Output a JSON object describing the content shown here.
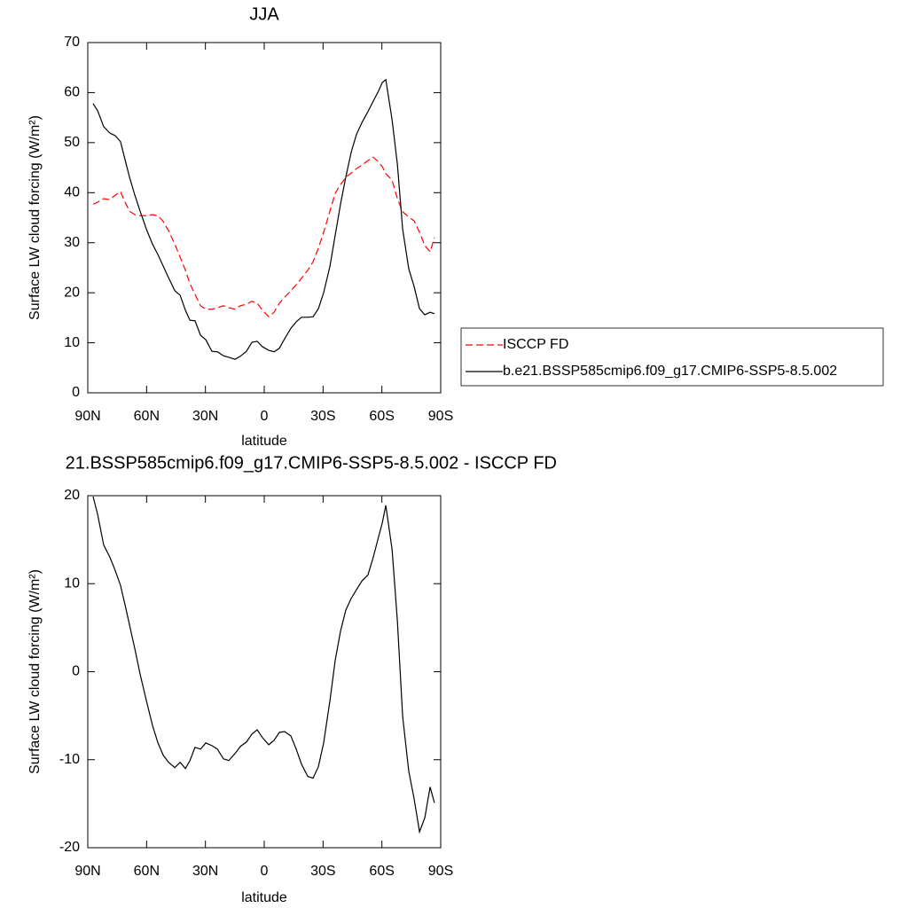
{
  "chart_data": [
    {
      "type": "line",
      "title": "JJA",
      "xlabel": "latitude",
      "ylabel": "Surface LW cloud forcing (W/m²)",
      "x": [
        87.3,
        85.0,
        81.9,
        78.7,
        76.0,
        73.3,
        71.0,
        68.7,
        66.0,
        63.3,
        60.1,
        57.0,
        54.2,
        51.5,
        48.8,
        45.6,
        42.9,
        40.2,
        37.9,
        35.3,
        32.5,
        29.8,
        26.7,
        23.9,
        20.8,
        18.1,
        14.9,
        12.2,
        9.1,
        6.3,
        3.6,
        0.9,
        -2.3,
        -5.0,
        -7.7,
        -10.4,
        -13.6,
        -16.3,
        -19.0,
        -22.2,
        -24.9,
        -27.6,
        -30.3,
        -33.5,
        -36.2,
        -38.9,
        -41.6,
        -44.3,
        -47.0,
        -49.8,
        -52.9,
        -55.6,
        -58.4,
        -60.2,
        -62.0,
        -65.2,
        -67.9,
        -70.6,
        -73.7,
        -76.4,
        -79.2,
        -81.9,
        -84.6,
        -86.8
      ],
      "series": [
        {
          "name": "ISCCP FD",
          "color": "#ff0000",
          "dashed": true,
          "values": [
            37.7,
            38.1,
            38.8,
            38.6,
            39.5,
            40.2,
            38.1,
            36.3,
            35.6,
            35.4,
            35.4,
            35.6,
            35.4,
            34.2,
            32.4,
            29.7,
            27.1,
            24.5,
            21.8,
            19.7,
            17.4,
            16.7,
            16.7,
            17.0,
            17.4,
            17.0,
            16.7,
            17.4,
            17.7,
            18.3,
            17.9,
            16.5,
            15.2,
            16.1,
            17.9,
            19.1,
            20.4,
            21.6,
            22.9,
            24.5,
            26.2,
            28.9,
            32.1,
            36.3,
            39.9,
            41.6,
            43.1,
            43.9,
            44.8,
            45.5,
            46.4,
            47.1,
            46.1,
            45.2,
            43.8,
            42.5,
            38.8,
            36.2,
            35.1,
            34.4,
            32.1,
            29.4,
            28.2,
            31.0
          ]
        },
        {
          "name": "b.e21.BSSP585cmip6.f09_g17.CMIP6-SSP5-8.5.002",
          "color": "#000000",
          "dashed": false,
          "values": [
            57.8,
            56.4,
            53.2,
            51.9,
            51.4,
            50.2,
            46.6,
            43.1,
            39.5,
            36.3,
            32.7,
            29.7,
            27.6,
            25.3,
            23.0,
            20.4,
            19.5,
            16.5,
            14.5,
            14.4,
            11.5,
            10.6,
            8.3,
            8.2,
            7.4,
            7.1,
            6.7,
            7.3,
            8.3,
            10.1,
            10.3,
            9.2,
            8.5,
            8.2,
            8.9,
            10.8,
            12.9,
            14.2,
            15.1,
            15.1,
            15.2,
            16.8,
            20.0,
            25.3,
            31.5,
            37.7,
            43.1,
            48.0,
            51.6,
            54.0,
            56.2,
            58.3,
            60.4,
            62.0,
            62.6,
            54.6,
            45.7,
            32.7,
            24.8,
            21.3,
            16.8,
            15.6,
            16.1,
            15.8
          ]
        }
      ],
      "xlim": [
        90,
        -90
      ],
      "xticks": [
        {
          "value": 90,
          "label": "90N"
        },
        {
          "value": 60,
          "label": "60N"
        },
        {
          "value": 30,
          "label": "30N"
        },
        0,
        {
          "value": -30,
          "label": "30S"
        },
        {
          "value": -60,
          "label": "60S"
        },
        {
          "value": -90,
          "label": "90S"
        }
      ],
      "ylim": [
        0,
        70
      ],
      "yticks": [
        0,
        10,
        20,
        30,
        40,
        50,
        60,
        70
      ],
      "legend": "outside-right"
    },
    {
      "type": "line",
      "title": "21.BSSP585cmip6.f09_g17.CMIP6-SSP5-8.5.002 - ISCCP FD",
      "xlabel": "latitude",
      "ylabel": "Surface LW cloud forcing (W/m²)",
      "x": [
        87.3,
        85.0,
        81.9,
        78.7,
        76.0,
        73.3,
        71.0,
        68.7,
        66.0,
        63.3,
        60.1,
        57.0,
        54.2,
        51.5,
        48.8,
        45.6,
        42.9,
        40.2,
        37.9,
        35.3,
        32.5,
        29.8,
        26.7,
        23.9,
        20.8,
        18.1,
        14.9,
        12.2,
        9.1,
        6.3,
        3.6,
        0.9,
        -2.3,
        -5.0,
        -7.7,
        -10.4,
        -13.6,
        -16.3,
        -19.0,
        -22.2,
        -24.9,
        -27.6,
        -30.3,
        -33.5,
        -36.2,
        -38.9,
        -41.6,
        -44.3,
        -47.0,
        -49.8,
        -52.9,
        -55.6,
        -58.4,
        -60.2,
        -62.0,
        -65.2,
        -67.9,
        -70.6,
        -73.7,
        -76.4,
        -79.2,
        -81.9,
        -84.6,
        -86.8
      ],
      "series": [
        {
          "color": "#000000",
          "dashed": false,
          "values": [
            19.9,
            17.9,
            14.4,
            13.0,
            11.5,
            9.8,
            7.6,
            5.3,
            2.6,
            -0.3,
            -3.3,
            -6.1,
            -8.1,
            -9.5,
            -10.3,
            -10.9,
            -10.3,
            -11.0,
            -10.1,
            -8.6,
            -8.8,
            -8.1,
            -8.4,
            -8.8,
            -9.9,
            -10.1,
            -9.3,
            -8.5,
            -8.0,
            -7.1,
            -6.6,
            -7.5,
            -8.3,
            -7.8,
            -6.9,
            -6.8,
            -7.3,
            -8.8,
            -10.5,
            -11.9,
            -12.1,
            -10.8,
            -8.1,
            -3.3,
            1.3,
            4.6,
            7.0,
            8.3,
            9.3,
            10.3,
            11.0,
            13.0,
            15.4,
            16.9,
            18.9,
            13.9,
            5.8,
            -5.1,
            -11.3,
            -14.4,
            -18.2,
            -16.6,
            -13.1,
            -14.9
          ]
        }
      ],
      "xlim": [
        90,
        -90
      ],
      "xticks": [
        {
          "value": 90,
          "label": "90N"
        },
        {
          "value": 60,
          "label": "60N"
        },
        {
          "value": 30,
          "label": "30N"
        },
        0,
        {
          "value": -30,
          "label": "30S"
        },
        {
          "value": -60,
          "label": "60S"
        },
        {
          "value": -90,
          "label": "90S"
        }
      ],
      "ylim": [
        -20,
        20
      ],
      "yticks": [
        -20,
        -10,
        0,
        10,
        20
      ]
    }
  ]
}
